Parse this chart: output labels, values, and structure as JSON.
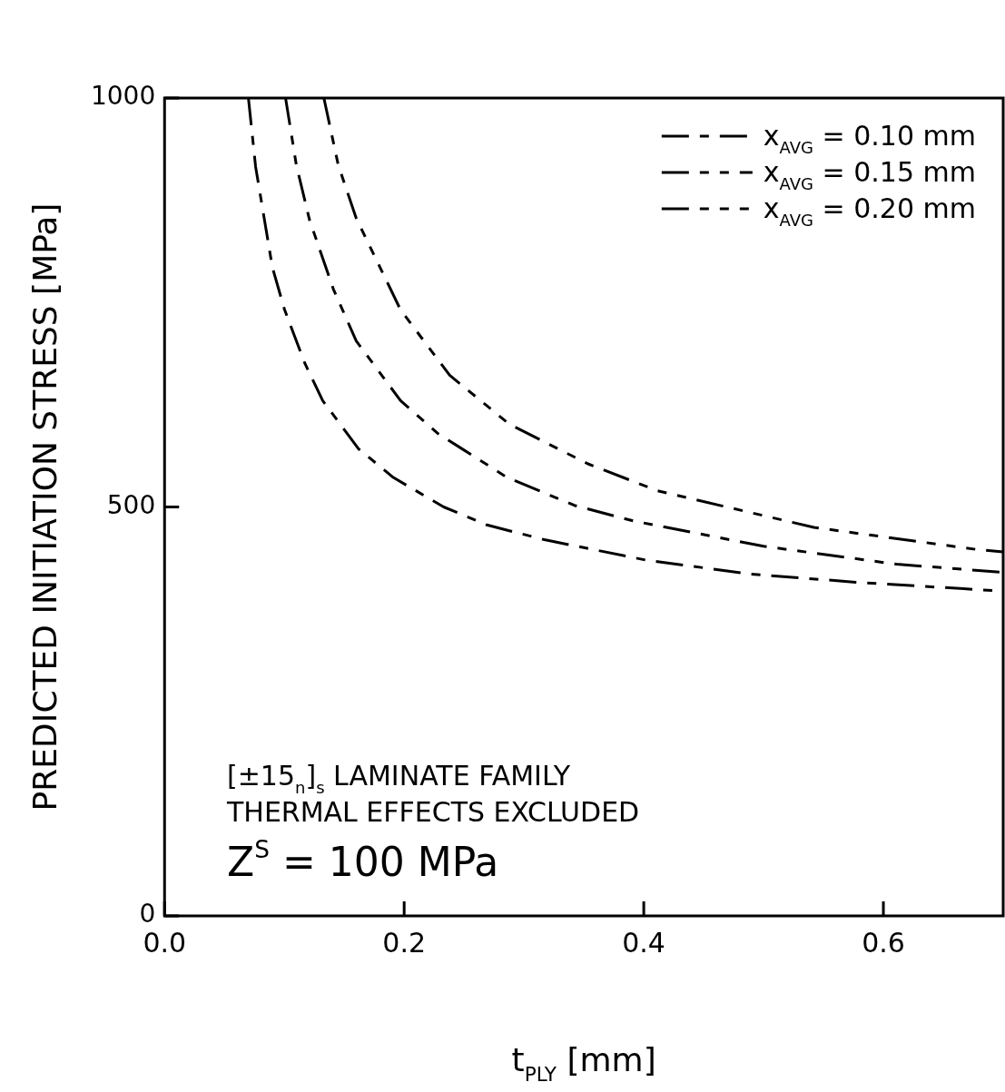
{
  "chart_data": {
    "type": "line",
    "xlabel": "t$_{PLY}$ [mm]",
    "ylabel": "PREDICTED INITIATION STRESS [MPa]",
    "xlim": [
      0,
      0.7
    ],
    "xticks": [
      {
        "value": 0,
        "label": "0.0"
      },
      {
        "value": 0.2,
        "label": "0.2"
      },
      {
        "value": 0.4,
        "label": "0.4"
      },
      {
        "value": 0.6,
        "label": "0.6"
      }
    ],
    "ylim": [
      0,
      1000
    ],
    "yticks": [
      0,
      500,
      1000
    ],
    "grid": false,
    "legend": "top right",
    "marker": "none",
    "line_style": "dashed",
    "annotations": [
      "[±15$_{n}$]$_{s}$ LAMINATE FAMILY",
      "THERMAL EFFECTS EXCLUDED",
      "Z$^{S}$ = 100 MPa"
    ],
    "series": [
      {
        "name": "x$_{AVG}$ = 0.10 mm",
        "color": "#000000",
        "x": [
          0.07,
          0.076,
          0.09,
          0.1,
          0.117,
          0.132,
          0.162,
          0.191,
          0.233,
          0.269,
          0.317,
          0.402,
          0.489,
          0.577,
          0.667,
          0.7
        ],
        "values": [
          1000,
          916,
          793,
          742,
          676,
          630,
          571,
          536,
          500,
          478,
          460,
          435,
          418,
          408,
          400,
          397
        ]
      },
      {
        "name": "x$_{AVG}$ = 0.15 mm",
        "color": "#000000",
        "x": [
          0.101,
          0.11,
          0.121,
          0.141,
          0.16,
          0.197,
          0.228,
          0.286,
          0.342,
          0.391,
          0.5,
          0.611,
          0.7
        ],
        "values": [
          1000,
          918,
          851,
          766,
          703,
          630,
          590,
          536,
          502,
          483,
          452,
          430,
          420
        ]
      },
      {
        "name": "x$_{AVG}$ = 0.20 mm",
        "color": "#000000",
        "x": [
          0.133,
          0.145,
          0.16,
          0.197,
          0.238,
          0.288,
          0.353,
          0.411,
          0.542,
          0.678,
          0.7
        ],
        "values": [
          1000,
          918,
          853,
          741,
          661,
          601,
          553,
          520,
          475,
          448,
          445
        ]
      }
    ]
  }
}
